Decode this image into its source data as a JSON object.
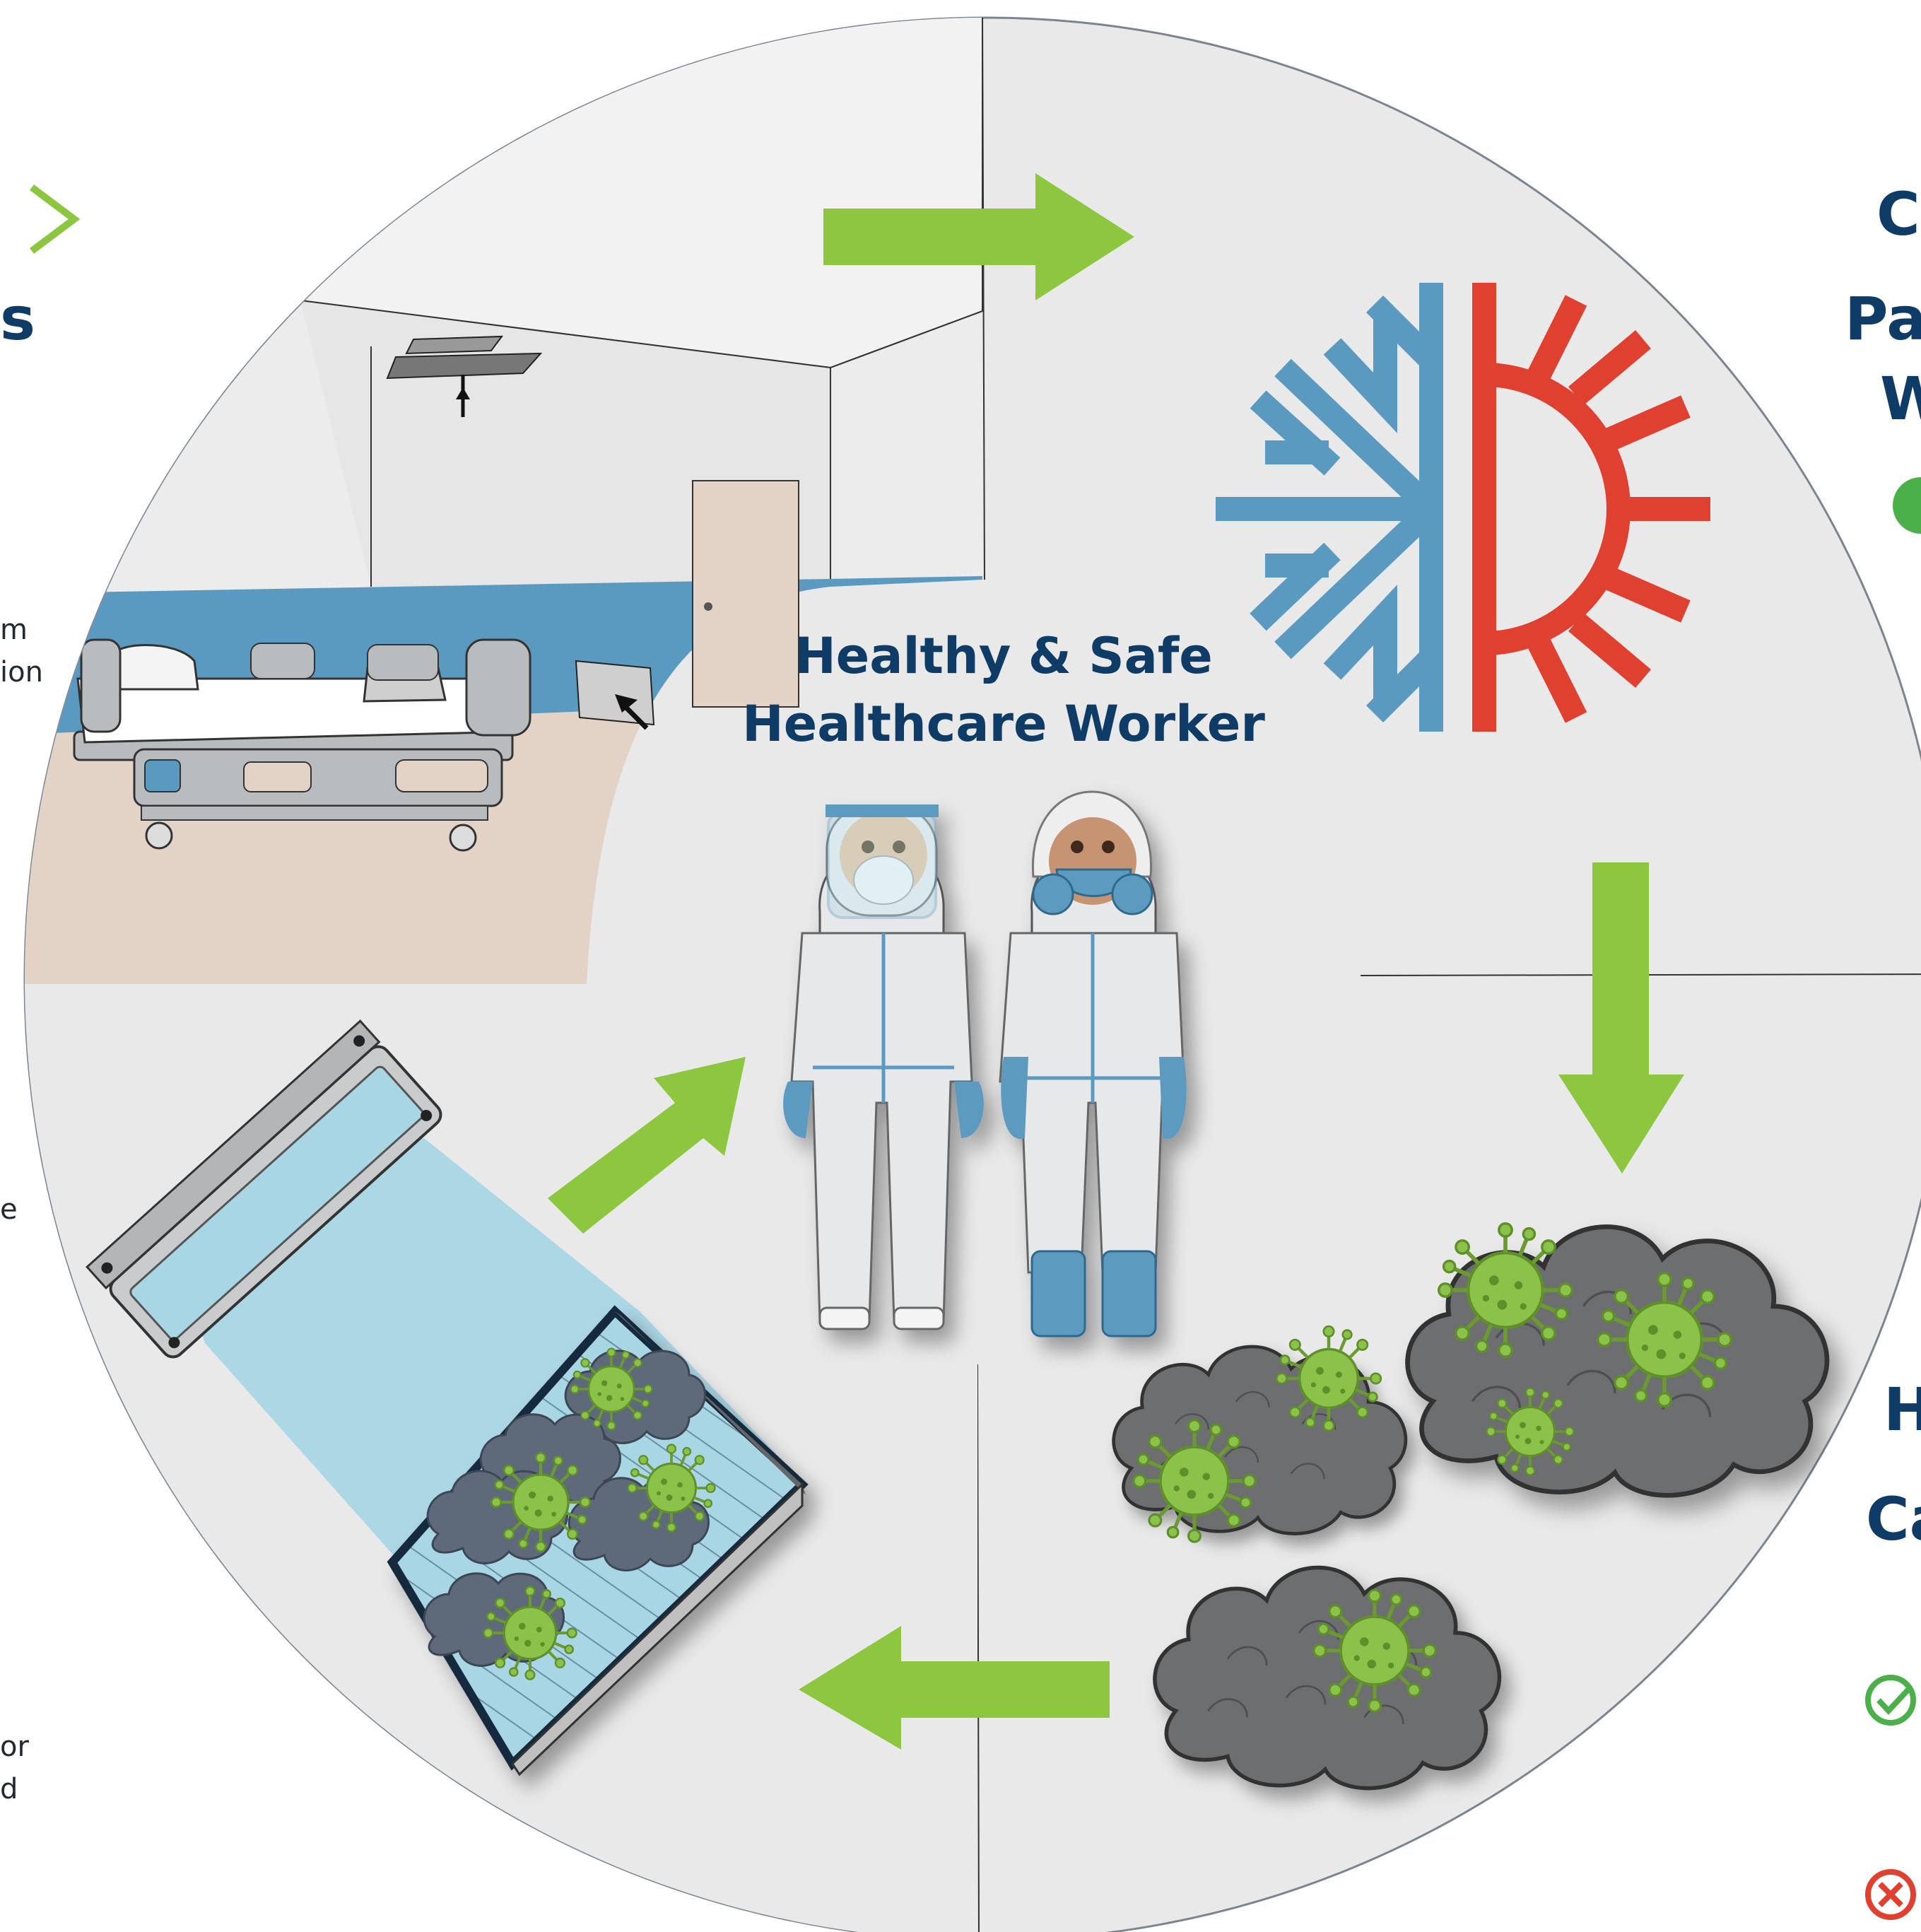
{
  "center": {
    "line1": "Healthy & Safe",
    "line2": "Healthcare Worker"
  },
  "left_fragments": {
    "f1": "m",
    "f2": "ion",
    "f3": "e",
    "f4": "or",
    "f5": "d",
    "h1": "s"
  },
  "right_fragments": {
    "h1": "C",
    "h2": "Pa",
    "h3": "W",
    "h4": "H",
    "h5": "Ca"
  },
  "colors": {
    "arrow": "#8dc63f",
    "navy": "#0f3c66",
    "cold": "#5b9ac0",
    "hot": "#e0402f",
    "virus": "#8bc34a",
    "smoke": "#6d6e70",
    "check": "#4cb04a",
    "cross": "#e0402f"
  },
  "icons": [
    "snowflake-sun-icon",
    "virus-icon",
    "uv-lamp-icon",
    "hospital-bed-icon",
    "check-icon",
    "cross-icon"
  ]
}
